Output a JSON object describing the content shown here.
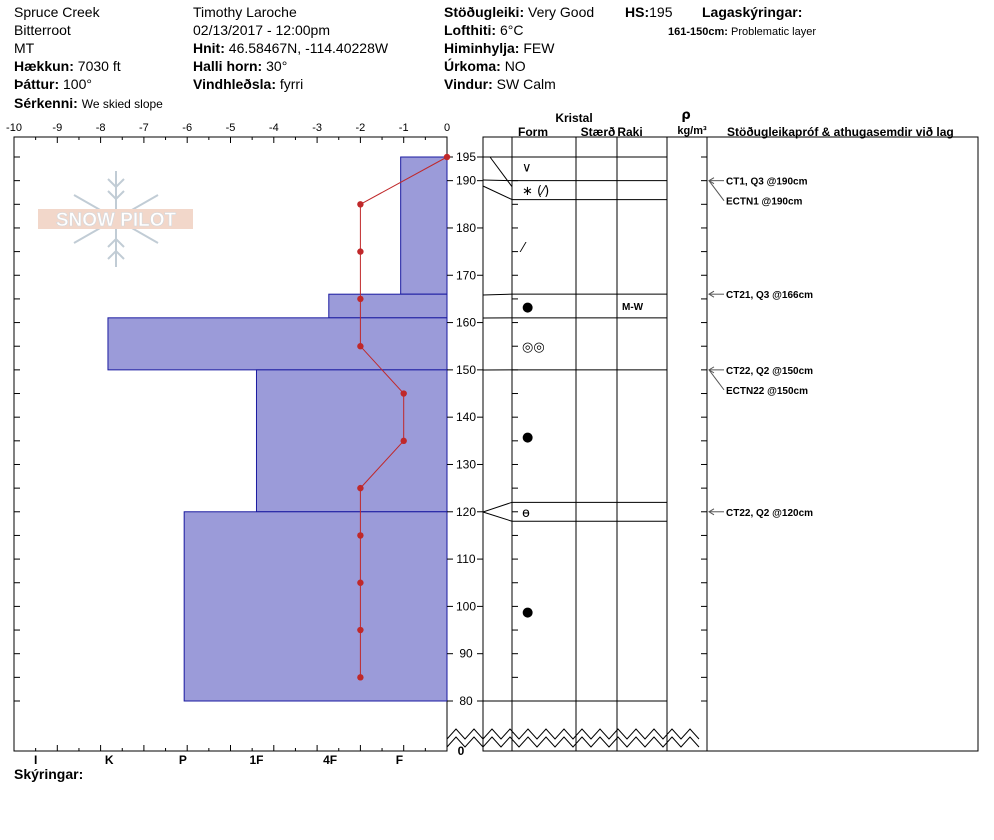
{
  "header": {
    "location": "Spruce Creek",
    "range": "Bitterroot",
    "state": "MT",
    "elevation_label": "Hækkun:",
    "elevation_value": "7030 ft",
    "aspect_label": "Þáttur:",
    "aspect_value": "100°",
    "features_label": "Sérkenni:",
    "features_value": "We skied slope",
    "observer": "Timothy  Laroche",
    "datetime": "02/13/2017 - 12:00pm",
    "coords_label": "Hnit:",
    "coords_value": "46.58467N, -114.40228W",
    "slope_label": "Halli horn:",
    "slope_value": "30°",
    "wind_loading_label": "Vindhleðsla:",
    "wind_loading_value": "fyrri",
    "stability_label": "Stöðugleiki:",
    "stability_value": "Very Good",
    "hs_label": "HS:",
    "hs_value": "195",
    "air_temp_label": "Lofthiti:",
    "air_temp_value": "6°C",
    "sky_label": "Himinhylja:",
    "sky_value": "FEW",
    "precip_label": "Úrkoma:",
    "precip_value": "NO",
    "wind_label": "Vindur:",
    "wind_value": "SW Calm",
    "layers_label": "Lagaskýringar:",
    "layer_note_range": "161-150cm:",
    "layer_note_text": "Problematic layer"
  },
  "logo_text": "SNOW PILOT",
  "footer_label": "Skýringar:",
  "columns": {
    "crystal": "Kristal",
    "form": "Form",
    "size": "Stærð",
    "moisture": "Raki",
    "rho": "ρ",
    "density_unit": "kg/m³",
    "tests": "Stöðugleikapróf & athugasemdir við lag"
  },
  "colors": {
    "hardness_fill": "#9b9bd9",
    "hardness_stroke": "#1a1aa0",
    "temp_line": "#c0282a"
  },
  "chart_data": {
    "type": "snow_profile",
    "temperature_axis": {
      "ticks": [
        "-10",
        "-9",
        "-8",
        "-7",
        "-6",
        "-5",
        "-4",
        "-3",
        "-2",
        "-1",
        "0"
      ],
      "range": [
        -10,
        0
      ]
    },
    "hardness_axis": {
      "labels": [
        "I",
        "K",
        "P",
        "1F",
        "4F",
        "F"
      ],
      "label_values": [
        9.5,
        7.8,
        6.1,
        4.4,
        2.7,
        1.1
      ]
    },
    "height_axis": {
      "ticks": [
        "195",
        "190",
        "180",
        "170",
        "160",
        "150",
        "140",
        "130",
        "120",
        "110",
        "100",
        "90",
        "80"
      ],
      "tick_values": [
        195,
        190,
        180,
        170,
        160,
        150,
        140,
        130,
        120,
        110,
        100,
        90,
        80
      ],
      "zero_label": "0",
      "range": [
        75,
        197
      ]
    },
    "hardness_layers": [
      {
        "top": 195,
        "bottom": 166,
        "hardness": 1.07
      },
      {
        "top": 166,
        "bottom": 161,
        "hardness": 2.73
      },
      {
        "top": 161,
        "bottom": 150,
        "hardness": 7.83
      },
      {
        "top": 150,
        "bottom": 120,
        "hardness": 4.4
      },
      {
        "top": 120,
        "bottom": 80,
        "hardness": 6.07
      }
    ],
    "temperature_profile": [
      {
        "height": 195,
        "temp": 0
      },
      {
        "height": 185,
        "temp": -2
      },
      {
        "height": 175,
        "temp": -2
      },
      {
        "height": 165,
        "temp": -2
      },
      {
        "height": 155,
        "temp": -2
      },
      {
        "height": 145,
        "temp": -1
      },
      {
        "height": 135,
        "temp": -1
      },
      {
        "height": 125,
        "temp": -2
      },
      {
        "height": 115,
        "temp": -2
      },
      {
        "height": 105,
        "temp": -2
      },
      {
        "height": 95,
        "temp": -2
      },
      {
        "height": 85,
        "temp": -2
      }
    ],
    "layer_boundaries": [
      195,
      190,
      186,
      166,
      161,
      150,
      122,
      118,
      80
    ],
    "crystal_forms": [
      {
        "height": 193,
        "symbol": "∨"
      },
      {
        "height": 188,
        "symbol": "∗ (⁄)"
      },
      {
        "height": 176,
        "symbol": "⁄"
      },
      {
        "height": 163.5,
        "symbol": "●"
      },
      {
        "height": 155,
        "symbol": "◎◎"
      },
      {
        "height": 136,
        "symbol": "●"
      },
      {
        "height": 120,
        "symbol": "ѳ"
      },
      {
        "height": 99,
        "symbol": "●"
      }
    ],
    "moisture": [
      {
        "height": 163.5,
        "value": "M-W"
      }
    ],
    "stability_tests": [
      {
        "height": 190,
        "label": "CT1, Q3 @190cm",
        "extra": "ECTN1 @190cm"
      },
      {
        "height": 166,
        "label": "CT21, Q3 @166cm"
      },
      {
        "height": 150,
        "label": "CT22, Q2 @150cm",
        "extra": "ECTN22 @150cm"
      },
      {
        "height": 120,
        "label": "CT22, Q2 @120cm"
      }
    ]
  }
}
